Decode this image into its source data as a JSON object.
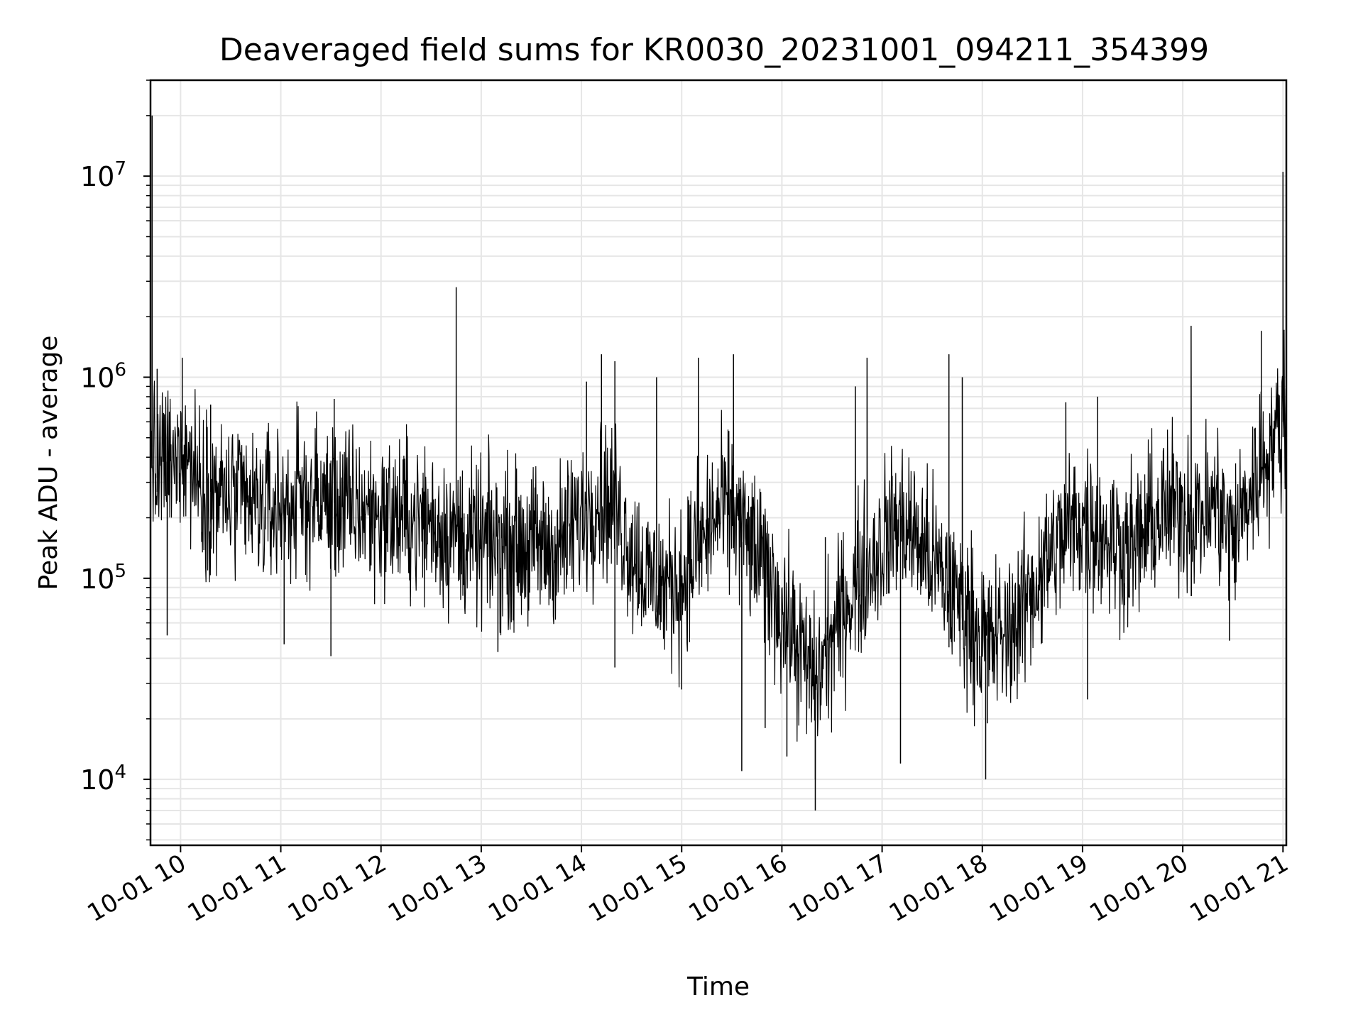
{
  "chart_data": {
    "type": "line",
    "title": "Deaveraged field sums for KR0030_20231001_094211_354399",
    "xlabel": "Time",
    "ylabel": "Peak ADU - average",
    "yscale": "log",
    "ylim": [
      4700,
      30000000
    ],
    "xlim": [
      "2023-10-01 09:42",
      "2023-10-01 21:02"
    ],
    "x_ticks": [
      "2023-10-01 10:00",
      "2023-10-01 11:00",
      "2023-10-01 12:00",
      "2023-10-01 13:00",
      "2023-10-01 14:00",
      "2023-10-01 15:00",
      "2023-10-01 16:00",
      "2023-10-01 17:00",
      "2023-10-01 18:00",
      "2023-10-01 19:00",
      "2023-10-01 20:00",
      "2023-10-01 21:00"
    ],
    "x_tick_labels": [
      "10-01 10",
      "10-01 11",
      "10-01 12",
      "10-01 13",
      "10-01 14",
      "10-01 15",
      "10-01 16",
      "10-01 17",
      "10-01 18",
      "10-01 19",
      "10-01 20",
      "10-01 21"
    ],
    "y_ticks": [
      10000,
      100000,
      1000000,
      10000000
    ],
    "y_tick_labels": [
      {
        "base": "10",
        "exp": "4"
      },
      {
        "base": "10",
        "exp": "5"
      },
      {
        "base": "10",
        "exp": "6"
      },
      {
        "base": "10",
        "exp": "7"
      }
    ],
    "grid": true,
    "line_color": "#000000",
    "grid_color": "#e6e6e6",
    "series": [
      {
        "x": [
          "2023-10-01 09:42",
          "2023-10-01 09:43",
          "2023-10-01 09:45",
          "2023-10-01 09:48",
          "2023-10-01 09:52",
          "2023-10-01 09:56",
          "2023-10-01 10:00",
          "2023-10-01 10:05",
          "2023-10-01 10:12",
          "2023-10-01 10:20",
          "2023-10-01 10:30",
          "2023-10-01 10:40",
          "2023-10-01 10:50",
          "2023-10-01 11:00",
          "2023-10-01 11:15",
          "2023-10-01 11:30",
          "2023-10-01 11:45",
          "2023-10-01 12:00",
          "2023-10-01 12:15",
          "2023-10-01 12:30",
          "2023-10-01 12:45",
          "2023-10-01 13:00",
          "2023-10-01 13:15",
          "2023-10-01 13:30",
          "2023-10-01 13:45",
          "2023-10-01 14:00",
          "2023-10-01 14:10",
          "2023-10-01 14:20",
          "2023-10-01 14:30",
          "2023-10-01 14:40",
          "2023-10-01 14:50",
          "2023-10-01 15:00",
          "2023-10-01 15:10",
          "2023-10-01 15:20",
          "2023-10-01 15:30",
          "2023-10-01 15:40",
          "2023-10-01 15:50",
          "2023-10-01 16:00",
          "2023-10-01 16:10",
          "2023-10-01 16:20",
          "2023-10-01 16:30",
          "2023-10-01 16:40",
          "2023-10-01 16:50",
          "2023-10-01 17:00",
          "2023-10-01 17:10",
          "2023-10-01 17:20",
          "2023-10-01 17:30",
          "2023-10-01 17:40",
          "2023-10-01 17:50",
          "2023-10-01 18:00",
          "2023-10-01 18:10",
          "2023-10-01 18:20",
          "2023-10-01 18:30",
          "2023-10-01 18:45",
          "2023-10-01 19:00",
          "2023-10-01 19:15",
          "2023-10-01 19:30",
          "2023-10-01 19:45",
          "2023-10-01 20:00",
          "2023-10-01 20:10",
          "2023-10-01 20:20",
          "2023-10-01 20:30",
          "2023-10-01 20:40",
          "2023-10-01 20:50",
          "2023-10-01 21:00",
          "2023-10-01 21:02"
        ],
        "y": [
          500000,
          450000,
          300000,
          350000,
          380000,
          330000,
          500000,
          400000,
          300000,
          260000,
          250000,
          230000,
          220000,
          230000,
          250000,
          240000,
          220000,
          210000,
          200000,
          190000,
          160000,
          150000,
          150000,
          145000,
          140000,
          200000,
          260000,
          230000,
          140000,
          100000,
          90000,
          100000,
          140000,
          200000,
          220000,
          150000,
          110000,
          70000,
          45000,
          30000,
          50000,
          80000,
          110000,
          150000,
          200000,
          160000,
          120000,
          90000,
          70000,
          50000,
          50000,
          60000,
          90000,
          150000,
          200000,
          160000,
          140000,
          200000,
          230000,
          200000,
          240000,
          160000,
          260000,
          420000,
          600000,
          700000
        ],
        "noise_amplitude_decades": 0.3
      }
    ],
    "spikes": [
      {
        "x": "2023-10-01 09:43",
        "y": 20000000
      },
      {
        "x": "2023-10-01 09:46",
        "y": 1100000
      },
      {
        "x": "2023-10-01 09:52",
        "y": 52000
      },
      {
        "x": "2023-10-01 10:01",
        "y": 1250000
      },
      {
        "x": "2023-10-01 10:18",
        "y": 730000
      },
      {
        "x": "2023-10-01 11:02",
        "y": 47000
      },
      {
        "x": "2023-10-01 11:32",
        "y": 780000
      },
      {
        "x": "2023-10-01 11:30",
        "y": 41000
      },
      {
        "x": "2023-10-01 12:45",
        "y": 2800000
      },
      {
        "x": "2023-10-01 13:10",
        "y": 43000
      },
      {
        "x": "2023-10-01 14:03",
        "y": 950000
      },
      {
        "x": "2023-10-01 14:12",
        "y": 1300000
      },
      {
        "x": "2023-10-01 14:20",
        "y": 1200000
      },
      {
        "x": "2023-10-01 14:20",
        "y": 36000
      },
      {
        "x": "2023-10-01 14:45",
        "y": 1000000
      },
      {
        "x": "2023-10-01 15:00",
        "y": 28000
      },
      {
        "x": "2023-10-01 15:10",
        "y": 1250000
      },
      {
        "x": "2023-10-01 15:31",
        "y": 1300000
      },
      {
        "x": "2023-10-01 15:36",
        "y": 11000
      },
      {
        "x": "2023-10-01 15:50",
        "y": 18000
      },
      {
        "x": "2023-10-01 16:03",
        "y": 13000
      },
      {
        "x": "2023-10-01 16:20",
        "y": 10000
      },
      {
        "x": "2023-10-01 16:20",
        "y": 7000
      },
      {
        "x": "2023-10-01 16:26",
        "y": 160000
      },
      {
        "x": "2023-10-01 16:44",
        "y": 900000
      },
      {
        "x": "2023-10-01 16:51",
        "y": 1250000
      },
      {
        "x": "2023-10-01 17:11",
        "y": 12000
      },
      {
        "x": "2023-10-01 17:40",
        "y": 1300000
      },
      {
        "x": "2023-10-01 17:48",
        "y": 1000000
      },
      {
        "x": "2023-10-01 18:02",
        "y": 10000
      },
      {
        "x": "2023-10-01 18:03",
        "y": 19000
      },
      {
        "x": "2023-10-01 18:50",
        "y": 750000
      },
      {
        "x": "2023-10-01 19:03",
        "y": 25000
      },
      {
        "x": "2023-10-01 19:09",
        "y": 800000
      },
      {
        "x": "2023-10-01 20:05",
        "y": 1800000
      },
      {
        "x": "2023-10-01 20:28",
        "y": 49000
      },
      {
        "x": "2023-10-01 20:47",
        "y": 1700000
      },
      {
        "x": "2023-10-01 21:00",
        "y": 10500000
      }
    ]
  }
}
